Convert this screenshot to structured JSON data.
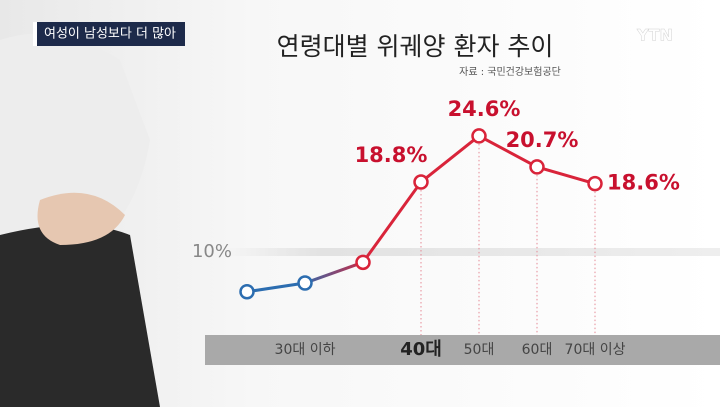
{
  "caption": "여성이 남성보다 더 많아",
  "logo": "YTN",
  "chart_data": {
    "type": "line",
    "title": "연령대별 위궤양 환자 추이",
    "source": "자료 : 국민건강보험공단",
    "categories": [
      null,
      "30대 이하",
      null,
      "40대",
      "50대",
      "60대",
      "70대 이상"
    ],
    "highlight_category": 3,
    "series": [
      {
        "name": "위궤양 환자",
        "color": "#d9243a",
        "start_color": "#2c6db0",
        "values": [
          5.0,
          6.1,
          8.7,
          18.8,
          24.6,
          20.7,
          18.6
        ],
        "value_labels": [
          null,
          null,
          null,
          "18.8%",
          "24.6%",
          "20.7%",
          "18.6%"
        ]
      }
    ],
    "ylim": [
      0,
      30
    ],
    "yticks": [
      {
        "value": 10,
        "label": "10%"
      }
    ],
    "grid": true
  }
}
